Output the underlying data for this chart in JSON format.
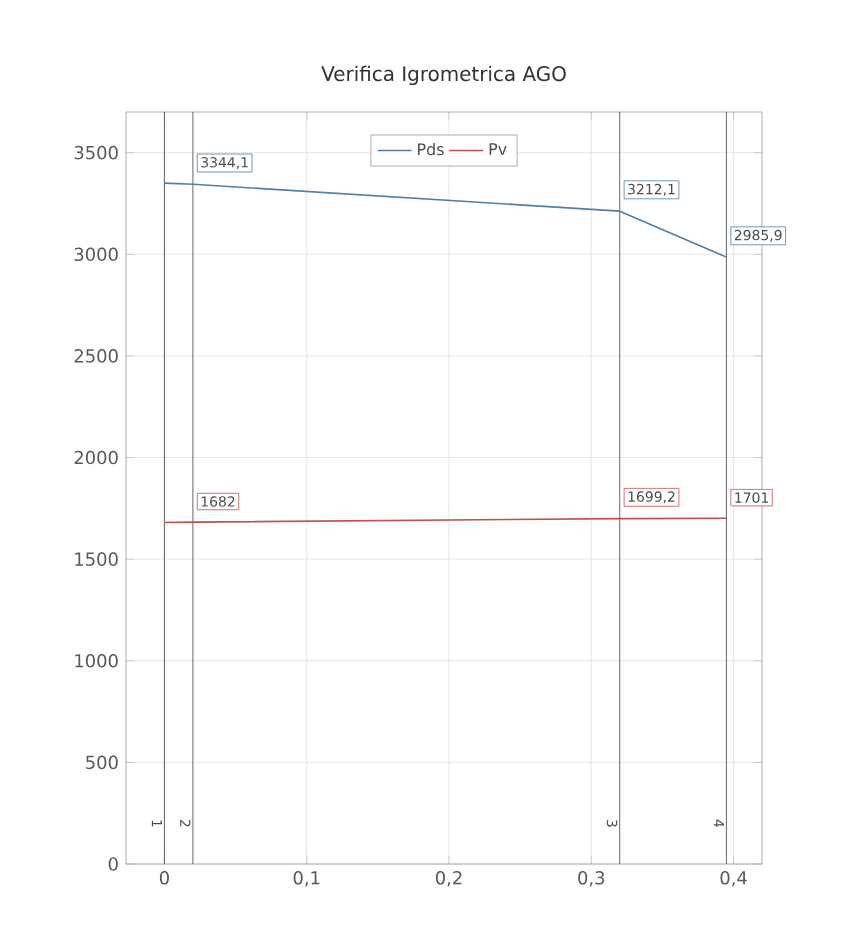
{
  "chart_data": {
    "type": "line",
    "title": "Verifica Igrometrica AGO",
    "x": [
      0,
      0.02,
      0.32,
      0.395
    ],
    "series": [
      {
        "name": "Pds",
        "color": "#4f7fa6",
        "values": [
          3350,
          3344.1,
          3212.1,
          2985.9
        ],
        "value_labels": [
          null,
          "3344,1",
          "3212,1",
          "2985,9"
        ]
      },
      {
        "name": "Pv",
        "color": "#c0504d",
        "values": [
          1680,
          1682,
          1699.2,
          1701
        ],
        "value_labels": [
          null,
          "1682",
          "1699,2",
          "1701"
        ]
      }
    ],
    "xlim": [
      -0.027,
      0.42
    ],
    "xticks": [
      {
        "value": 0,
        "label": "0"
      },
      {
        "value": 0.1,
        "label": "0,1"
      },
      {
        "value": 0.2,
        "label": "0,2"
      },
      {
        "value": 0.3,
        "label": "0,3"
      },
      {
        "value": 0.4,
        "label": "0,4"
      }
    ],
    "ylim": [
      0,
      3700
    ],
    "yticks": [
      0,
      500,
      1000,
      1500,
      2000,
      2500,
      3000,
      3500
    ],
    "ref_lines": [
      {
        "axis": "x",
        "value": 0,
        "color": "#404040"
      },
      {
        "axis": "x",
        "value": 0.02,
        "color": "#404040"
      },
      {
        "axis": "x",
        "value": 0.32,
        "color": "#404040"
      },
      {
        "axis": "x",
        "value": 0.395,
        "color": "#404040"
      }
    ],
    "annotations": [
      {
        "text": "1",
        "x": 0,
        "y": 200
      },
      {
        "text": "2",
        "x": 0.02,
        "y": 200
      },
      {
        "text": "3",
        "x": 0.32,
        "y": 200
      },
      {
        "text": "4",
        "x": 0.395,
        "y": 200
      }
    ],
    "grid": true,
    "legend": "top",
    "marker": "none",
    "line_style": "solid"
  }
}
